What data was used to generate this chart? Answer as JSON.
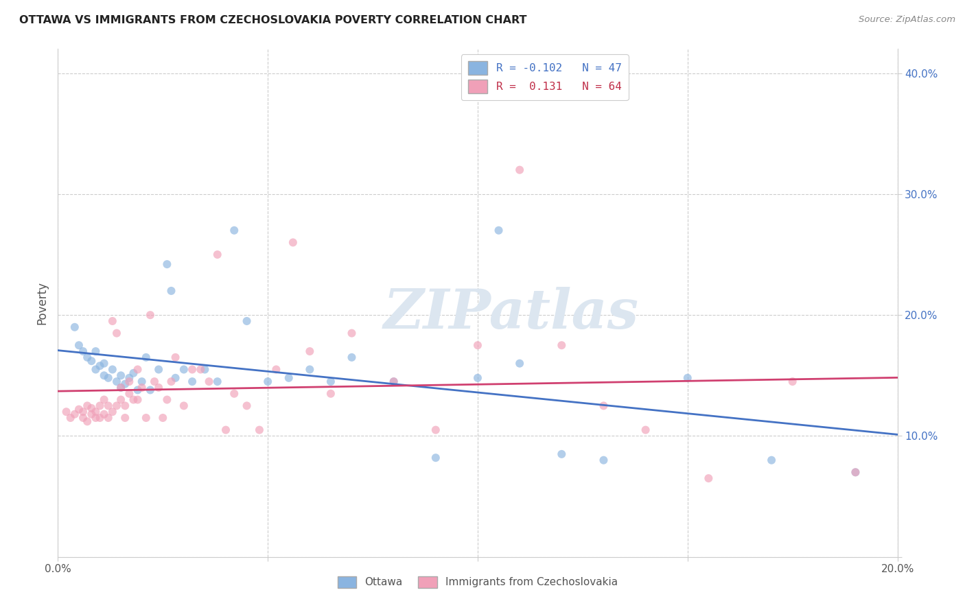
{
  "title": "OTTAWA VS IMMIGRANTS FROM CZECHOSLOVAKIA POVERTY CORRELATION CHART",
  "source": "Source: ZipAtlas.com",
  "ylabel": "Poverty",
  "xlim": [
    0.0,
    0.2
  ],
  "ylim": [
    0.0,
    0.42
  ],
  "xticks": [
    0.0,
    0.05,
    0.1,
    0.15,
    0.2
  ],
  "xticklabels": [
    "0.0%",
    "",
    "",
    "",
    "20.0%"
  ],
  "yticks": [
    0.0,
    0.1,
    0.2,
    0.3,
    0.4
  ],
  "yticklabels": [
    "",
    "10.0%",
    "20.0%",
    "30.0%",
    "40.0%"
  ],
  "grid_color": "#cccccc",
  "background_color": "#ffffff",
  "watermark_text": "ZIPatlas",
  "watermark_color": "#dce6f0",
  "legend_line1": "R = -0.102   N = 47",
  "legend_line2": "R =  0.131   N = 64",
  "color_ottawa": "#8ab4e0",
  "color_immig": "#f0a0b8",
  "line_color_ottawa": "#4472c4",
  "line_color_immig": "#d04070",
  "scatter_alpha": 0.65,
  "scatter_size": 75,
  "ottawa_x": [
    0.004,
    0.005,
    0.006,
    0.007,
    0.008,
    0.009,
    0.009,
    0.01,
    0.011,
    0.011,
    0.012,
    0.013,
    0.014,
    0.015,
    0.015,
    0.016,
    0.017,
    0.018,
    0.019,
    0.02,
    0.021,
    0.022,
    0.024,
    0.026,
    0.027,
    0.028,
    0.03,
    0.032,
    0.035,
    0.038,
    0.042,
    0.045,
    0.05,
    0.055,
    0.06,
    0.065,
    0.07,
    0.08,
    0.09,
    0.1,
    0.105,
    0.11,
    0.12,
    0.13,
    0.15,
    0.17,
    0.19
  ],
  "ottawa_y": [
    0.19,
    0.175,
    0.17,
    0.165,
    0.162,
    0.155,
    0.17,
    0.158,
    0.15,
    0.16,
    0.148,
    0.155,
    0.145,
    0.15,
    0.14,
    0.143,
    0.148,
    0.152,
    0.138,
    0.145,
    0.165,
    0.138,
    0.155,
    0.242,
    0.22,
    0.148,
    0.155,
    0.145,
    0.155,
    0.145,
    0.27,
    0.195,
    0.145,
    0.148,
    0.155,
    0.145,
    0.165,
    0.145,
    0.082,
    0.148,
    0.27,
    0.16,
    0.085,
    0.08,
    0.148,
    0.08,
    0.07
  ],
  "immig_x": [
    0.002,
    0.003,
    0.004,
    0.005,
    0.006,
    0.006,
    0.007,
    0.007,
    0.008,
    0.008,
    0.009,
    0.009,
    0.01,
    0.01,
    0.011,
    0.011,
    0.012,
    0.012,
    0.013,
    0.013,
    0.014,
    0.014,
    0.015,
    0.015,
    0.016,
    0.016,
    0.017,
    0.017,
    0.018,
    0.019,
    0.019,
    0.02,
    0.021,
    0.022,
    0.023,
    0.024,
    0.025,
    0.026,
    0.027,
    0.028,
    0.03,
    0.032,
    0.034,
    0.036,
    0.038,
    0.04,
    0.042,
    0.045,
    0.048,
    0.052,
    0.056,
    0.06,
    0.065,
    0.07,
    0.08,
    0.09,
    0.1,
    0.11,
    0.12,
    0.13,
    0.14,
    0.155,
    0.175,
    0.19
  ],
  "immig_y": [
    0.12,
    0.115,
    0.118,
    0.122,
    0.115,
    0.12,
    0.112,
    0.125,
    0.118,
    0.123,
    0.115,
    0.12,
    0.115,
    0.125,
    0.118,
    0.13,
    0.115,
    0.125,
    0.195,
    0.12,
    0.125,
    0.185,
    0.13,
    0.14,
    0.115,
    0.125,
    0.135,
    0.145,
    0.13,
    0.13,
    0.155,
    0.14,
    0.115,
    0.2,
    0.145,
    0.14,
    0.115,
    0.13,
    0.145,
    0.165,
    0.125,
    0.155,
    0.155,
    0.145,
    0.25,
    0.105,
    0.135,
    0.125,
    0.105,
    0.155,
    0.26,
    0.17,
    0.135,
    0.185,
    0.145,
    0.105,
    0.175,
    0.32,
    0.175,
    0.125,
    0.105,
    0.065,
    0.145,
    0.07
  ]
}
